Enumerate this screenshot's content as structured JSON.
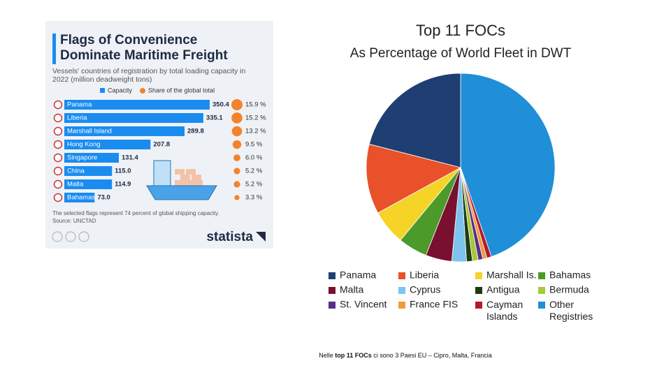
{
  "chart_data": [
    {
      "type": "bar",
      "orientation": "horizontal",
      "title": "Flags of Convenience Dominate Maritime Freight",
      "subtitle": "Vessels' countries of registration by total loading capacity in 2022 (million deadweight tons)",
      "categories": [
        "Panama",
        "Liberia",
        "Marshall Island",
        "Hong Kong",
        "Singapore",
        "China",
        "Malta",
        "Bahamas"
      ],
      "series": [
        {
          "name": "Capacity",
          "color": "#1a8cf0",
          "values": [
            350.4,
            335.1,
            289.8,
            207.8,
            131.4,
            115.0,
            114.9,
            73.0
          ],
          "value_labels": [
            "350.4",
            "335.1",
            "289.8",
            "207.8",
            "131.4",
            "115.0",
            "114.9",
            "73.0"
          ]
        },
        {
          "name": "Share of the global total",
          "color": "#f5822a",
          "values": [
            15.9,
            15.2,
            13.2,
            9.5,
            6.0,
            5.2,
            5.2,
            3.3
          ],
          "value_labels": [
            "15.9 %",
            "15.2 %",
            "13.2 %",
            "9.5 %",
            "6.0 %",
            "5.2 %",
            "5.2 %",
            "3.3 %"
          ]
        }
      ],
      "note": "The selected flags represent 74 percent of global shipping capacity.",
      "source": "Source: UNCTAD",
      "brand": "statista"
    },
    {
      "type": "pie",
      "title": "Top 11 FOCs",
      "subtitle": "As Percentage of World Fleet in DWT",
      "categories": [
        "Panama",
        "Liberia",
        "Marshall Is.",
        "Bahamas",
        "Malta",
        "Cyprus",
        "Antigua",
        "Bermuda",
        "St. Vincent",
        "France FIS",
        "Cayman Islands",
        "Other Registries"
      ],
      "values": [
        21,
        12,
        6,
        5,
        4.5,
        2.5,
        1,
        1,
        0.8,
        0.7,
        0.8,
        44.7
      ],
      "colors": [
        "#1f3f73",
        "#e8512a",
        "#f5d327",
        "#4c9a2a",
        "#7a1030",
        "#7cc4ee",
        "#1f3a12",
        "#a6c93a",
        "#5a2d8a",
        "#f39a3b",
        "#b01c2e",
        "#1f8fd8"
      ]
    }
  ],
  "footer": {
    "before": "Nelle ",
    "bold": "top 11 FOCs",
    "after": " ci sono 3 Paesi EU – Cipro, Malta, Francia"
  }
}
